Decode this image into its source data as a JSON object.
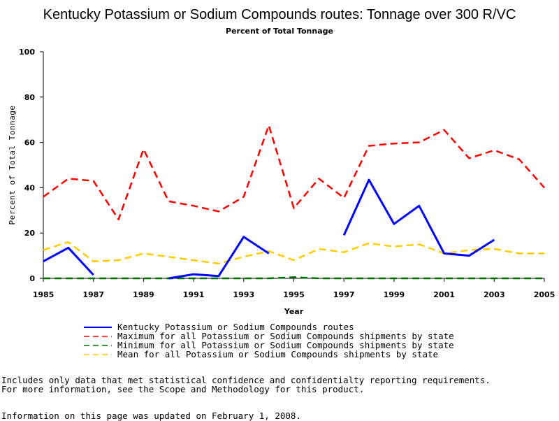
{
  "chart_data": {
    "type": "line",
    "title": "Kentucky Potassium or Sodium Compounds routes: Tonnage over 300 R/VC",
    "subtitle": "Percent of Total Tonnage",
    "xlabel": "Year",
    "ylabel": "Percent of Total Tonnage",
    "xlim": [
      1985,
      2005
    ],
    "ylim": [
      0,
      100
    ],
    "xticks": [
      "1985",
      "1987",
      "1989",
      "1991",
      "1993",
      "1995",
      "1997",
      "1999",
      "2001",
      "2003",
      "2005"
    ],
    "yticks": [
      "0",
      "20",
      "40",
      "60",
      "80",
      "100"
    ],
    "x": [
      1985,
      1986,
      1987,
      1988,
      1989,
      1990,
      1991,
      1992,
      1993,
      1994,
      1995,
      1996,
      1997,
      1998,
      1999,
      2000,
      2001,
      2002,
      2003,
      2004,
      2005
    ],
    "series": [
      {
        "name": "Kentucky Potassium or Sodium Compounds routes",
        "color": "#0000ff",
        "dash": "solid",
        "values": [
          7.5,
          13.5,
          1.5,
          null,
          null,
          0,
          1.8,
          1,
          18.3,
          11,
          null,
          null,
          19,
          43.5,
          24,
          32,
          11,
          10,
          17,
          null,
          null
        ]
      },
      {
        "name": "Maximum for all Potassium or Sodium Compounds shipments by state",
        "color": "#ff0000",
        "dash": "long",
        "values": [
          36,
          44,
          43,
          26,
          57,
          34,
          32,
          29.5,
          36,
          67.5,
          31,
          44,
          35.5,
          58.5,
          59.5,
          60,
          65.5,
          53,
          56.5,
          52.5,
          40
        ]
      },
      {
        "name": "Minimum for all Potassium or Sodium Compounds shipments by state",
        "color": "#007000",
        "dash": "long",
        "values": [
          0,
          0,
          0,
          0,
          0,
          0,
          0,
          0,
          0,
          0,
          0.5,
          0,
          0,
          0,
          0,
          0,
          0,
          0,
          0,
          0,
          0
        ]
      },
      {
        "name": "Mean for all Potassium or Sodium Compounds shipments by state",
        "color": "#ffcc00",
        "dash": "long",
        "values": [
          12.5,
          16,
          7.5,
          8,
          11,
          9.5,
          8,
          6.5,
          9.5,
          12,
          8,
          13,
          11.5,
          15.5,
          14,
          15,
          11,
          12.5,
          13,
          11,
          11
        ]
      }
    ],
    "grid": false,
    "legend_position": "bottom"
  },
  "notes": {
    "line1": "Includes only data that met statistical confidence and confidentialty reporting requirements.",
    "line2": "For more information, see the Scope and Methodology for this product.",
    "updated": "Information on this page was updated on February 1, 2008."
  }
}
